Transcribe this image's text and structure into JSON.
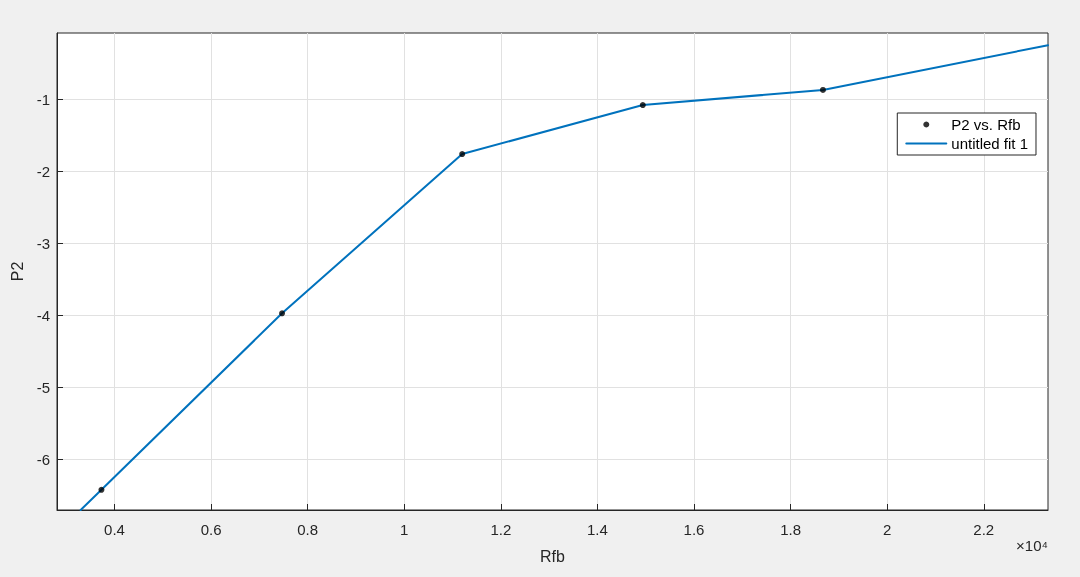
{
  "chart_data": {
    "type": "line",
    "xlabel": "Rfb",
    "ylabel": "P2",
    "annotations": [
      "×10⁴"
    ],
    "series": [
      {
        "name": "P2 vs. Rfb",
        "type": "scatter",
        "color": "#000000",
        "marker": "circle",
        "x": [
          0.373,
          0.747,
          1.12,
          1.494,
          1.867
        ],
        "values": [
          -6.42,
          -3.97,
          -1.76,
          -1.08,
          -0.87
        ]
      },
      {
        "name": "untitled fit 1",
        "color": "#0072bd",
        "marker": "none",
        "line_style": "solid",
        "x": [
          0.33,
          0.373,
          0.747,
          1.12,
          1.494,
          1.867,
          2.333
        ],
        "values": [
          -6.7,
          -6.42,
          -3.97,
          -1.76,
          -1.08,
          -0.87,
          -0.25
        ]
      }
    ],
    "xlim": [
      0.281,
      2.333
    ],
    "xticks": [
      0.4,
      0.6,
      0.8,
      1,
      1.2,
      1.4,
      1.6,
      1.8,
      2,
      2.2
    ],
    "ylim": [
      -6.7,
      -0.08
    ],
    "yticks": [
      -6,
      -5,
      -4,
      -3,
      -2,
      -1
    ],
    "grid": true,
    "legend": "top right"
  }
}
